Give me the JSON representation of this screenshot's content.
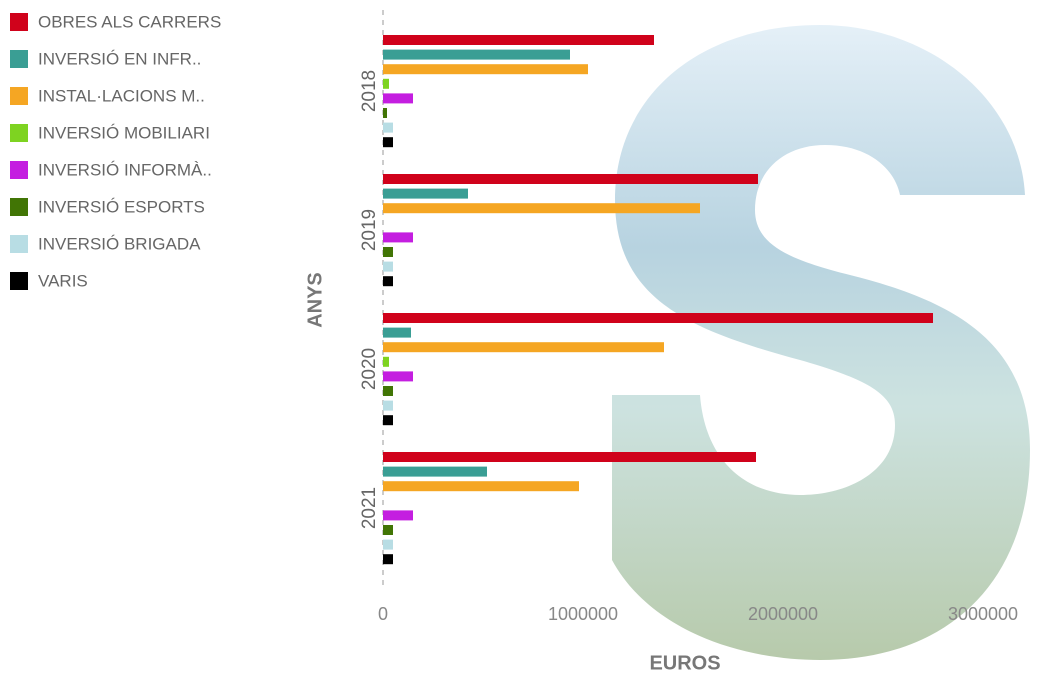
{
  "chart_data": {
    "type": "hbar",
    "categories": [
      "2018",
      "2019",
      "2020",
      "2021"
    ],
    "xlabel": "EUROS",
    "ylabel": "ANYS",
    "xlim": [
      0,
      3250000
    ],
    "xticks": [
      0,
      1000000,
      2000000,
      3000000
    ],
    "series": [
      {
        "name": "OBRES ALS CARRERS",
        "color": "#d0021b",
        "values": [
          1355000,
          1875000,
          2750000,
          1865000
        ]
      },
      {
        "name": "INVERSIÓ EN INFR..",
        "color": "#3a9e94",
        "values": [
          935000,
          425000,
          140000,
          520000
        ]
      },
      {
        "name": "INSTAL·LACIONS M..",
        "color": "#f5a623",
        "values": [
          1025000,
          1585000,
          1405000,
          980000
        ]
      },
      {
        "name": "INVERSIÓ MOBILIARI",
        "color": "#7ed321",
        "values": [
          30000,
          0,
          30000,
          0
        ]
      },
      {
        "name": "INVERSIÓ INFORMÀ..",
        "color": "#c41ee0",
        "values": [
          150000,
          150000,
          150000,
          150000
        ]
      },
      {
        "name": "INVERSIÓ ESPORTS",
        "color": "#417505",
        "values": [
          20000,
          50000,
          50000,
          50000
        ]
      },
      {
        "name": "INVERSIÓ BRIGADA",
        "color": "#b8dde4",
        "values": [
          50000,
          50000,
          50000,
          50000
        ]
      },
      {
        "name": "VARIS",
        "color": "#000000",
        "values": [
          50000,
          50000,
          50000,
          50000
        ]
      }
    ]
  }
}
